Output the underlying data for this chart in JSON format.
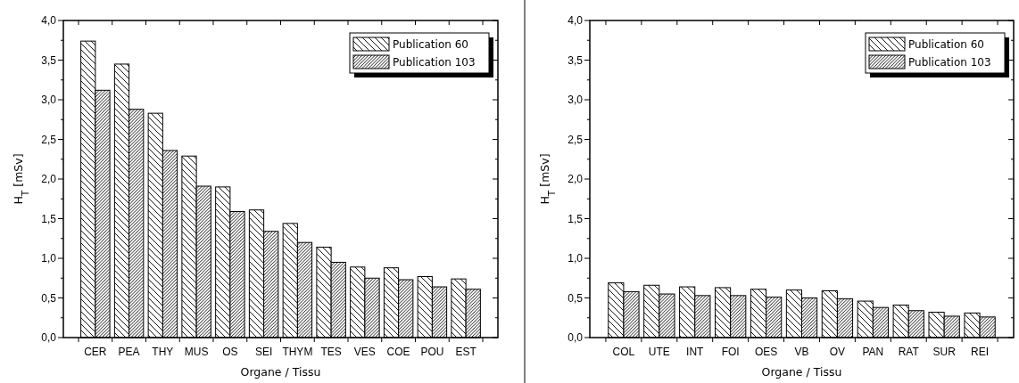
{
  "chart_data": [
    {
      "type": "bar",
      "xlabel": "Organe / Tissu",
      "ylabel": "H$_{T}$ [mSv]",
      "legend": "top right",
      "categories": [
        "CER",
        "PEA",
        "THY",
        "MUS",
        "OS",
        "SEI",
        "THYM",
        "TES",
        "VES",
        "COE",
        "POU",
        "EST"
      ],
      "series": [
        {
          "name": "Publication 60",
          "color": "#000000",
          "values": [
            3.74,
            3.45,
            2.83,
            2.29,
            1.9,
            1.61,
            1.44,
            1.14,
            0.89,
            0.88,
            0.77,
            0.74
          ]
        },
        {
          "name": "Publication 103",
          "color": "#000000",
          "values": [
            3.12,
            2.88,
            2.36,
            1.91,
            1.59,
            1.34,
            1.2,
            0.95,
            0.75,
            0.73,
            0.64,
            0.61
          ]
        }
      ],
      "ylim": [
        0,
        4
      ],
      "yticks": [
        {
          "value": 0,
          "label": "0,0"
        },
        {
          "value": 0.25,
          "label": null
        },
        {
          "value": 0.5,
          "label": "0,5"
        },
        {
          "value": 0.75,
          "label": null
        },
        {
          "value": 1,
          "label": "1,0"
        },
        {
          "value": 1.25,
          "label": null
        },
        {
          "value": 1.5,
          "label": "1,5"
        },
        {
          "value": 1.75,
          "label": null
        },
        {
          "value": 2,
          "label": "2,0"
        },
        {
          "value": 2.25,
          "label": null
        },
        {
          "value": 2.5,
          "label": "2,5"
        },
        {
          "value": 2.75,
          "label": null
        },
        {
          "value": 3,
          "label": "3,0"
        },
        {
          "value": 3.25,
          "label": null
        },
        {
          "value": 3.5,
          "label": "3,5"
        },
        {
          "value": 3.75,
          "label": null
        },
        {
          "value": 4,
          "label": "4,0"
        }
      ]
    },
    {
      "type": "bar",
      "xlabel": "Organe / Tissu",
      "ylabel": "H$_{T}$ [mSv]",
      "legend": "top right",
      "categories": [
        "COL",
        "UTE",
        "INT",
        "FOI",
        "OES",
        "VB",
        "OV",
        "PAN",
        "RAT",
        "SUR",
        "REI"
      ],
      "series": [
        {
          "name": "Publication 60",
          "color": "#000000",
          "values": [
            0.69,
            0.66,
            0.64,
            0.63,
            0.61,
            0.6,
            0.59,
            0.46,
            0.41,
            0.32,
            0.31
          ]
        },
        {
          "name": "Publication 103",
          "color": "#000000",
          "values": [
            0.58,
            0.55,
            0.53,
            0.53,
            0.51,
            0.5,
            0.49,
            0.38,
            0.34,
            0.27,
            0.26
          ]
        }
      ],
      "ylim": [
        0,
        4
      ],
      "yticks": [
        {
          "value": 0,
          "label": "0,0"
        },
        {
          "value": 0.25,
          "label": null
        },
        {
          "value": 0.5,
          "label": "0,5"
        },
        {
          "value": 0.75,
          "label": null
        },
        {
          "value": 1,
          "label": "1,0"
        },
        {
          "value": 1.25,
          "label": null
        },
        {
          "value": 1.5,
          "label": "1,5"
        },
        {
          "value": 1.75,
          "label": null
        },
        {
          "value": 2,
          "label": "2,0"
        },
        {
          "value": 2.25,
          "label": null
        },
        {
          "value": 2.5,
          "label": "2,5"
        },
        {
          "value": 2.75,
          "label": null
        },
        {
          "value": 3,
          "label": "3,0"
        },
        {
          "value": 3.25,
          "label": null
        },
        {
          "value": 3.5,
          "label": "3,5"
        },
        {
          "value": 3.75,
          "label": null
        },
        {
          "value": 4,
          "label": "4,0"
        }
      ]
    }
  ]
}
